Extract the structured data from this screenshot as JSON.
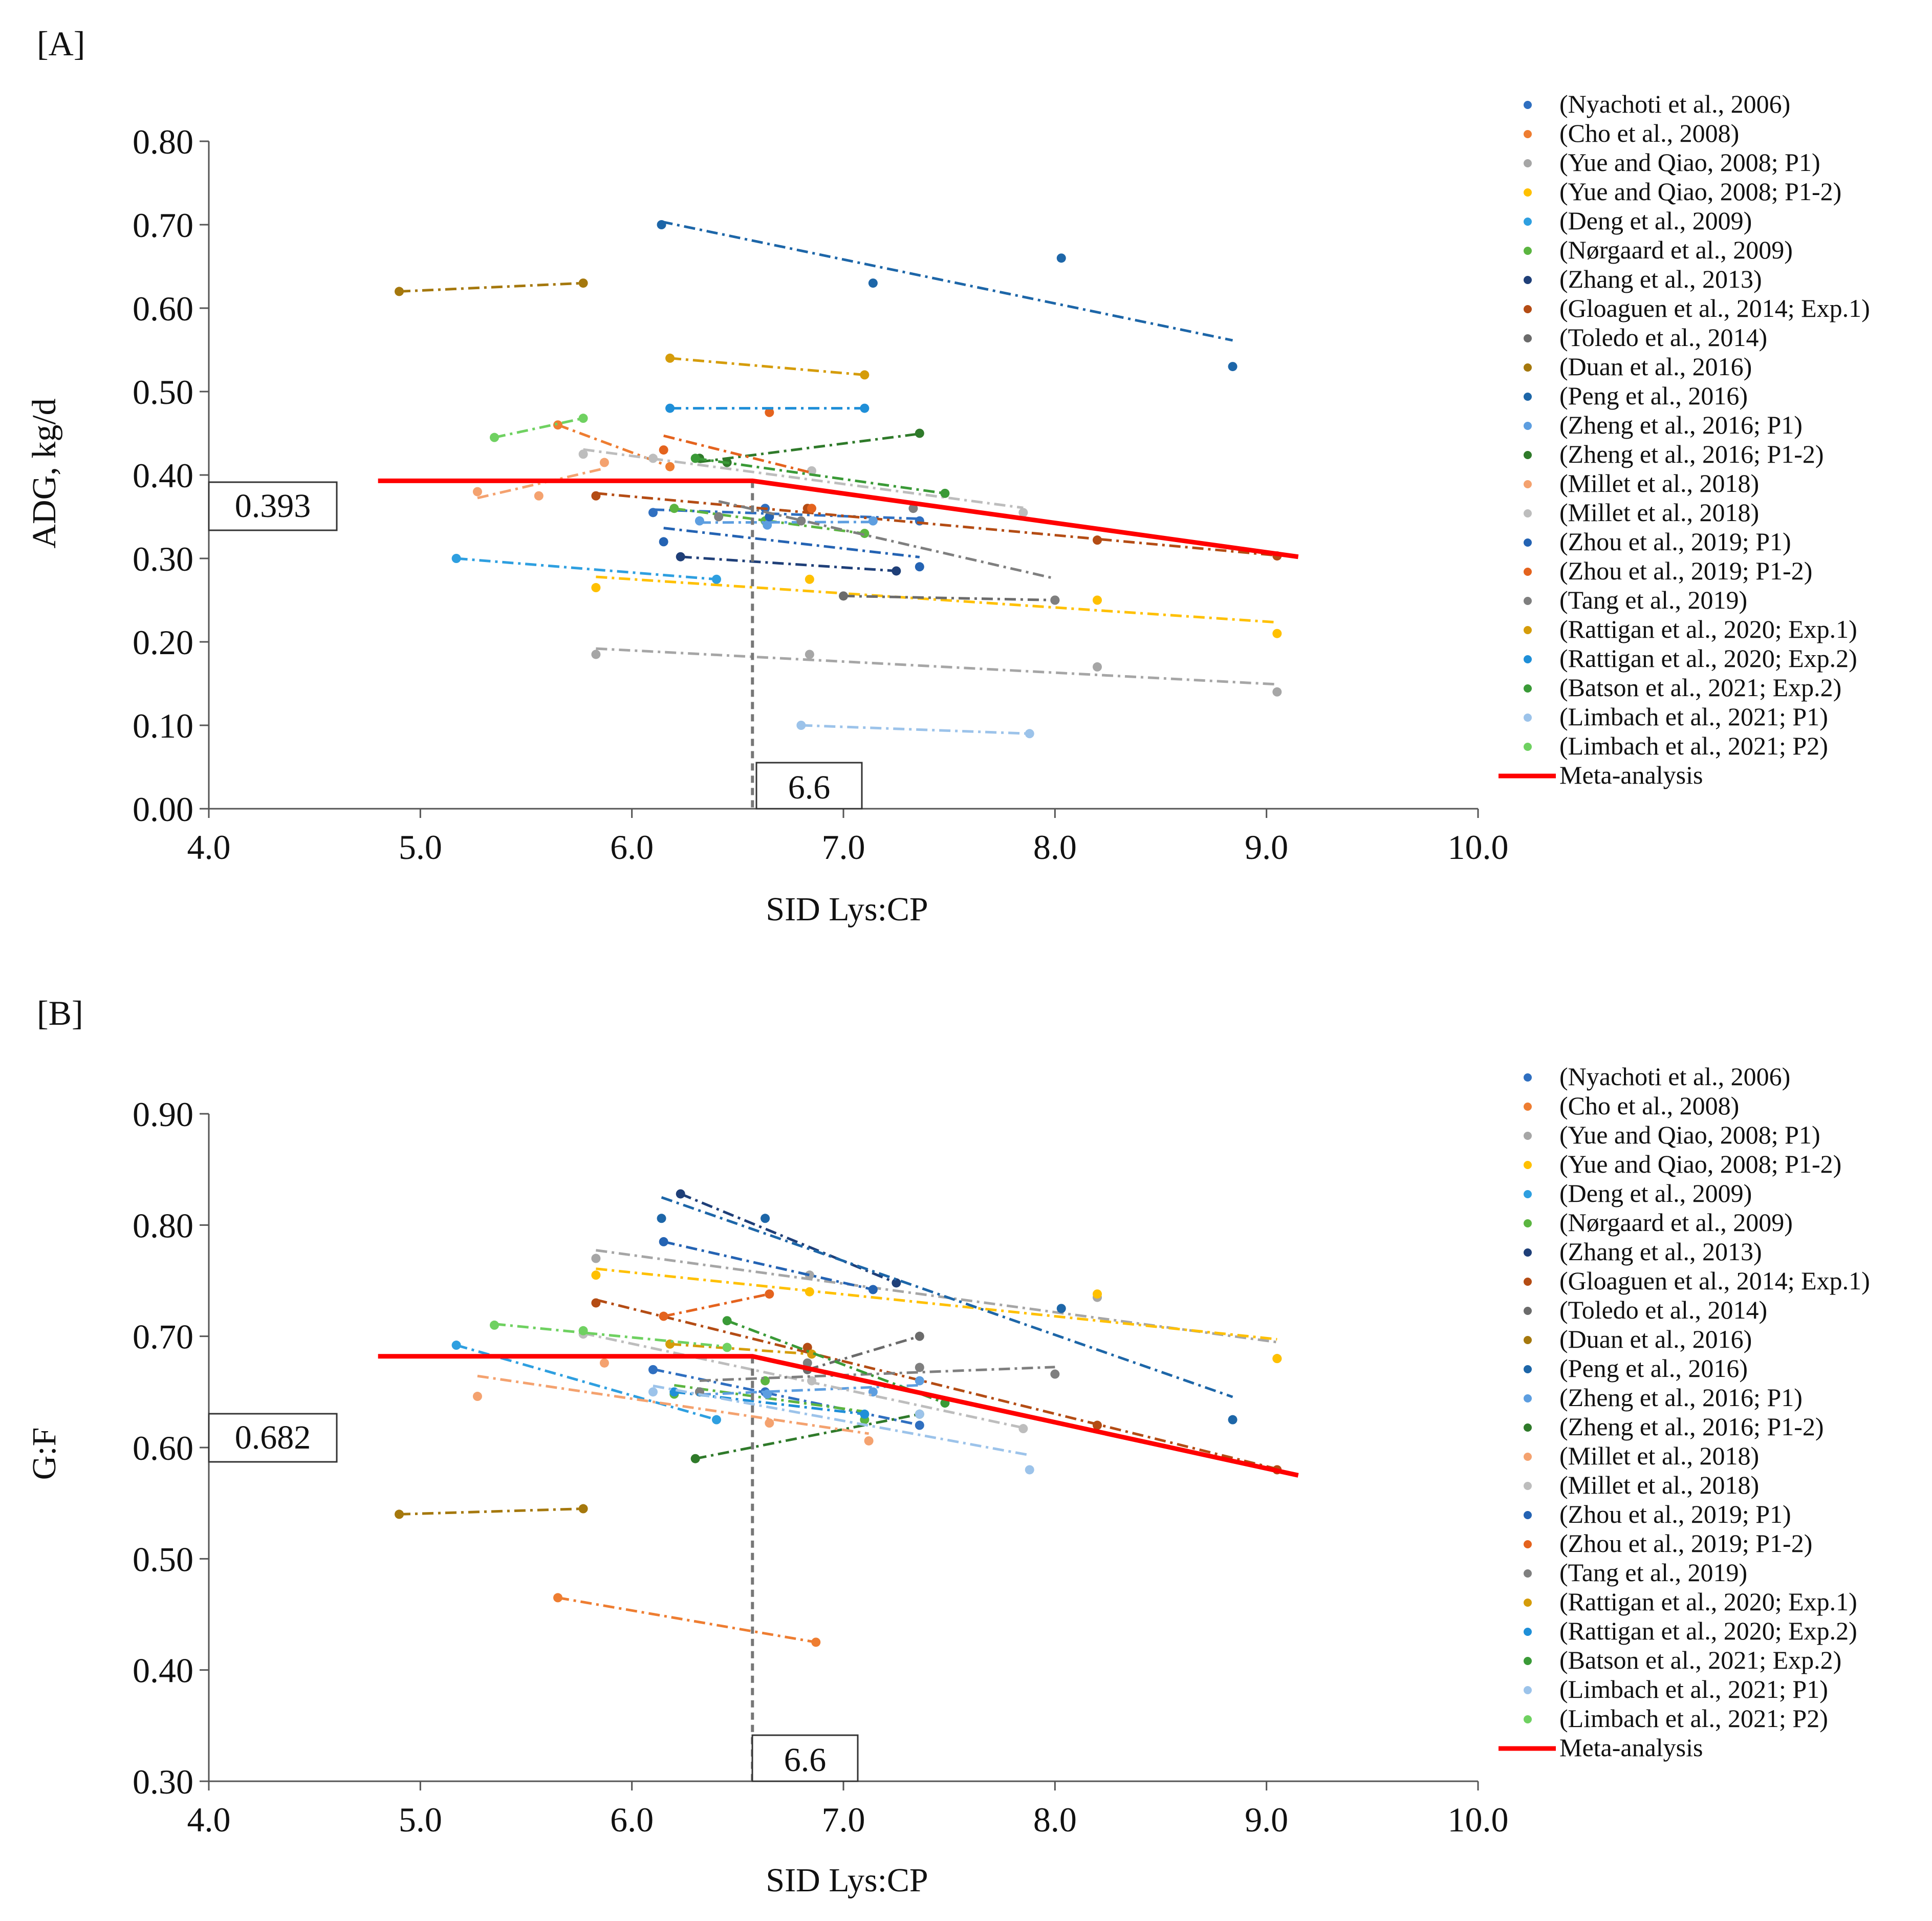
{
  "study_colors": [
    "#2f6fc0",
    "#ee7d31",
    "#a6a6a6",
    "#ffc000",
    "#2e9fe0",
    "#5bb540",
    "#1f3f78",
    "#b44c14",
    "#6b6b6b",
    "#a5780d",
    "#1d66a8",
    "#5d9ee0",
    "#2f7a2a",
    "#f4a26f",
    "#bdbdbd",
    "#2463b3",
    "#e4631e",
    "#7f7f7f",
    "#d59c0a",
    "#1f8fd8",
    "#3a9a37",
    "#9cc3ea",
    "#6fd161"
  ],
  "meta_color": "#ff0000",
  "panels": [
    {
      "panel_label": "[A]",
      "breakpoint_label": "6.6",
      "plateau_label": "0.393",
      "chart_data": {
        "type": "scatter",
        "title": "",
        "xlabel": "SID Lys:CP",
        "ylabel": "ADG, kg/d",
        "xlim": [
          4.0,
          10.0
        ],
        "ylim": [
          0.0,
          0.8
        ],
        "xticks": [
          "4.0",
          "5.0",
          "6.0",
          "7.0",
          "8.0",
          "9.0",
          "10.0"
        ],
        "yticks": [
          "0.00",
          "0.10",
          "0.20",
          "0.30",
          "0.40",
          "0.50",
          "0.60",
          "0.70",
          "0.80"
        ],
        "legend_position": "right",
        "series": [
          {
            "name": "(Nyachoti et al., 2006)",
            "color_index": 0,
            "points": [
              [
                6.1,
                0.355
              ],
              [
                6.63,
                0.36
              ],
              [
                7.36,
                0.345
              ]
            ]
          },
          {
            "name": "(Cho et al., 2008)",
            "color_index": 1,
            "points": [
              [
                5.65,
                0.46
              ],
              [
                6.18,
                0.41
              ]
            ]
          },
          {
            "name": "(Yue and Qiao, 2008; P1)",
            "color_index": 2,
            "points": [
              [
                5.83,
                0.185
              ],
              [
                6.84,
                0.185
              ],
              [
                8.2,
                0.17
              ],
              [
                9.05,
                0.14
              ]
            ]
          },
          {
            "name": "(Yue and Qiao, 2008; P1-2)",
            "color_index": 3,
            "points": [
              [
                5.83,
                0.265
              ],
              [
                6.84,
                0.275
              ],
              [
                8.2,
                0.25
              ],
              [
                9.05,
                0.21
              ]
            ]
          },
          {
            "name": "(Deng et al., 2009)",
            "color_index": 4,
            "points": [
              [
                5.17,
                0.3
              ],
              [
                6.4,
                0.275
              ]
            ]
          },
          {
            "name": "(Nørgaard et al., 2009)",
            "color_index": 5,
            "points": [
              [
                6.2,
                0.36
              ],
              [
                6.63,
                0.345
              ],
              [
                7.1,
                0.33
              ]
            ]
          },
          {
            "name": "(Zhang et al., 2013)",
            "color_index": 6,
            "points": [
              [
                6.23,
                0.302
              ],
              [
                7.25,
                0.285
              ]
            ]
          },
          {
            "name": "(Gloaguen et al., 2014; Exp.1)",
            "color_index": 7,
            "points": [
              [
                5.83,
                0.375
              ],
              [
                6.83,
                0.36
              ],
              [
                8.2,
                0.322
              ],
              [
                9.05,
                0.303
              ]
            ]
          },
          {
            "name": "(Toledo et al., 2014)",
            "color_index": 8,
            "points": [
              [
                7.0,
                0.255
              ],
              [
                8.0,
                0.25
              ]
            ]
          },
          {
            "name": "(Duan et al., 2016)",
            "color_index": 9,
            "points": [
              [
                4.9,
                0.62
              ],
              [
                5.77,
                0.63
              ]
            ]
          },
          {
            "name": "(Peng et al., 2016)",
            "color_index": 10,
            "points": [
              [
                6.14,
                0.7
              ],
              [
                7.14,
                0.63
              ],
              [
                8.03,
                0.66
              ],
              [
                8.84,
                0.53
              ]
            ]
          },
          {
            "name": "(Zheng et al., 2016; P1)",
            "color_index": 11,
            "points": [
              [
                6.32,
                0.345
              ],
              [
                6.64,
                0.34
              ],
              [
                7.14,
                0.345
              ]
            ]
          },
          {
            "name": "(Zheng et al., 2016; P1-2)",
            "color_index": 12,
            "points": [
              [
                6.32,
                0.42
              ],
              [
                6.45,
                0.415
              ],
              [
                7.36,
                0.45
              ]
            ]
          },
          {
            "name": "(Millet et al., 2018)",
            "color_index": 13,
            "points": [
              [
                5.27,
                0.38
              ],
              [
                5.56,
                0.375
              ],
              [
                5.87,
                0.415
              ]
            ]
          },
          {
            "name": "(Millet et al., 2018)",
            "color_index": 14,
            "points": [
              [
                5.77,
                0.425
              ],
              [
                6.1,
                0.42
              ],
              [
                6.85,
                0.405
              ],
              [
                7.85,
                0.355
              ]
            ]
          },
          {
            "name": "(Zhou et al., 2019; P1)",
            "color_index": 15,
            "points": [
              [
                6.15,
                0.32
              ],
              [
                6.65,
                0.35
              ],
              [
                7.36,
                0.29
              ]
            ]
          },
          {
            "name": "(Zhou et al., 2019; P1-2)",
            "color_index": 16,
            "points": [
              [
                6.15,
                0.43
              ],
              [
                6.65,
                0.475
              ],
              [
                6.85,
                0.36
              ]
            ]
          },
          {
            "name": "(Tang et al., 2019)",
            "color_index": 17,
            "points": [
              [
                6.41,
                0.35
              ],
              [
                6.8,
                0.345
              ],
              [
                7.33,
                0.36
              ],
              [
                8.0,
                0.25
              ]
            ]
          },
          {
            "name": "(Rattigan et al., 2020; Exp.1)",
            "color_index": 18,
            "points": [
              [
                6.18,
                0.54
              ],
              [
                7.1,
                0.52
              ]
            ]
          },
          {
            "name": "(Rattigan et al., 2020; Exp.2)",
            "color_index": 19,
            "points": [
              [
                6.18,
                0.48
              ],
              [
                7.1,
                0.48
              ]
            ]
          },
          {
            "name": "(Batson et al., 2021; Exp.2)",
            "color_index": 20,
            "points": [
              [
                6.3,
                0.42
              ],
              [
                7.48,
                0.378
              ]
            ]
          },
          {
            "name": "(Limbach et al., 2021; P1)",
            "color_index": 21,
            "points": [
              [
                6.8,
                0.1
              ],
              [
                7.88,
                0.09
              ]
            ]
          },
          {
            "name": "(Limbach et al., 2021; P2)",
            "color_index": 22,
            "points": [
              [
                5.35,
                0.445
              ],
              [
                5.77,
                0.468
              ]
            ]
          }
        ],
        "meta_analysis": {
          "name": "Meta-analysis",
          "points": [
            [
              4.8,
              0.393
            ],
            [
              6.57,
              0.393
            ],
            [
              9.15,
              0.302
            ]
          ]
        },
        "breakpoint_x": 6.57,
        "plateau_y": 0.393
      }
    },
    {
      "panel_label": "[B]",
      "breakpoint_label": "6.6",
      "plateau_label": "0.682",
      "chart_data": {
        "type": "scatter",
        "title": "",
        "xlabel": "SID Lys:CP",
        "ylabel": "G:F",
        "xlim": [
          4.0,
          10.0
        ],
        "ylim": [
          0.3,
          0.9
        ],
        "xticks": [
          "4.0",
          "5.0",
          "6.0",
          "7.0",
          "8.0",
          "9.0",
          "10.0"
        ],
        "yticks": [
          "0.30",
          "0.40",
          "0.50",
          "0.60",
          "0.70",
          "0.80",
          "0.90"
        ],
        "legend_position": "right",
        "series": [
          {
            "name": "(Nyachoti et al., 2006)",
            "color_index": 0,
            "points": [
              [
                6.1,
                0.67
              ],
              [
                6.63,
                0.65
              ],
              [
                7.36,
                0.62
              ]
            ]
          },
          {
            "name": "(Cho et al., 2008)",
            "color_index": 1,
            "points": [
              [
                5.65,
                0.465
              ],
              [
                6.87,
                0.425
              ]
            ]
          },
          {
            "name": "(Yue and Qiao, 2008; P1)",
            "color_index": 2,
            "points": [
              [
                5.83,
                0.77
              ],
              [
                6.84,
                0.755
              ],
              [
                8.2,
                0.735
              ],
              [
                9.05,
                0.68
              ]
            ]
          },
          {
            "name": "(Yue and Qiao, 2008; P1-2)",
            "color_index": 3,
            "points": [
              [
                5.83,
                0.755
              ],
              [
                6.84,
                0.74
              ],
              [
                8.2,
                0.738
              ],
              [
                9.05,
                0.68
              ]
            ]
          },
          {
            "name": "(Deng et al., 2009)",
            "color_index": 4,
            "points": [
              [
                5.17,
                0.692
              ],
              [
                6.4,
                0.625
              ]
            ]
          },
          {
            "name": "(Nørgaard et al., 2009)",
            "color_index": 5,
            "points": [
              [
                6.2,
                0.648
              ],
              [
                6.63,
                0.66
              ],
              [
                7.1,
                0.625
              ]
            ]
          },
          {
            "name": "(Zhang et al., 2013)",
            "color_index": 6,
            "points": [
              [
                6.23,
                0.828
              ],
              [
                7.25,
                0.748
              ]
            ]
          },
          {
            "name": "(Gloaguen et al., 2014; Exp.1)",
            "color_index": 7,
            "points": [
              [
                5.83,
                0.73
              ],
              [
                6.83,
                0.69
              ],
              [
                8.2,
                0.62
              ],
              [
                9.05,
                0.58
              ]
            ]
          },
          {
            "name": "(Toledo et al., 2014)",
            "color_index": 8,
            "points": [
              [
                6.83,
                0.67
              ],
              [
                7.36,
                0.7
              ]
            ]
          },
          {
            "name": "(Duan et al., 2016)",
            "color_index": 9,
            "points": [
              [
                4.9,
                0.54
              ],
              [
                5.77,
                0.545
              ]
            ]
          },
          {
            "name": "(Peng et al., 2016)",
            "color_index": 10,
            "points": [
              [
                6.14,
                0.806
              ],
              [
                6.63,
                0.806
              ],
              [
                8.03,
                0.725
              ],
              [
                8.84,
                0.625
              ]
            ]
          },
          {
            "name": "(Zheng et al., 2016; P1)",
            "color_index": 11,
            "points": [
              [
                6.32,
                0.65
              ],
              [
                6.64,
                0.648
              ],
              [
                7.14,
                0.65
              ],
              [
                7.36,
                0.66
              ]
            ]
          },
          {
            "name": "(Zheng et al., 2016; P1-2)",
            "color_index": 12,
            "points": [
              [
                6.3,
                0.59
              ],
              [
                7.36,
                0.63
              ]
            ]
          },
          {
            "name": "(Millet et al., 2018)",
            "color_index": 13,
            "points": [
              [
                5.27,
                0.646
              ],
              [
                5.87,
                0.676
              ],
              [
                6.65,
                0.622
              ],
              [
                7.12,
                0.606
              ]
            ]
          },
          {
            "name": "(Millet et al., 2018)",
            "color_index": 14,
            "points": [
              [
                5.77,
                0.702
              ],
              [
                6.85,
                0.66
              ],
              [
                7.85,
                0.617
              ]
            ]
          },
          {
            "name": "(Zhou et al., 2019; P1)",
            "color_index": 15,
            "points": [
              [
                6.15,
                0.785
              ],
              [
                7.14,
                0.742
              ]
            ]
          },
          {
            "name": "(Zhou et al., 2019; P1-2)",
            "color_index": 16,
            "points": [
              [
                6.15,
                0.718
              ],
              [
                6.65,
                0.738
              ]
            ]
          },
          {
            "name": "(Tang et al., 2019)",
            "color_index": 17,
            "points": [
              [
                6.32,
                0.65
              ],
              [
                6.83,
                0.676
              ],
              [
                7.36,
                0.672
              ],
              [
                8.0,
                0.666
              ]
            ]
          },
          {
            "name": "(Rattigan et al., 2020; Exp.1)",
            "color_index": 18,
            "points": [
              [
                6.18,
                0.693
              ],
              [
                6.85,
                0.684
              ]
            ]
          },
          {
            "name": "(Rattigan et al., 2020; Exp.2)",
            "color_index": 19,
            "points": [
              [
                6.2,
                0.65
              ],
              [
                7.1,
                0.63
              ]
            ]
          },
          {
            "name": "(Batson et al., 2021; Exp.2)",
            "color_index": 20,
            "points": [
              [
                6.45,
                0.714
              ],
              [
                7.48,
                0.64
              ]
            ]
          },
          {
            "name": "(Limbach et al., 2021; P1)",
            "color_index": 21,
            "points": [
              [
                6.1,
                0.65
              ],
              [
                7.36,
                0.63
              ],
              [
                7.88,
                0.58
              ]
            ]
          },
          {
            "name": "(Limbach et al., 2021; P2)",
            "color_index": 22,
            "points": [
              [
                5.35,
                0.71
              ],
              [
                5.77,
                0.705
              ],
              [
                6.45,
                0.69
              ]
            ]
          }
        ],
        "meta_analysis": {
          "name": "Meta-analysis",
          "points": [
            [
              4.8,
              0.682
            ],
            [
              6.57,
              0.682
            ],
            [
              9.15,
              0.575
            ]
          ]
        },
        "breakpoint_x": 6.57,
        "plateau_y": 0.682
      }
    }
  ]
}
